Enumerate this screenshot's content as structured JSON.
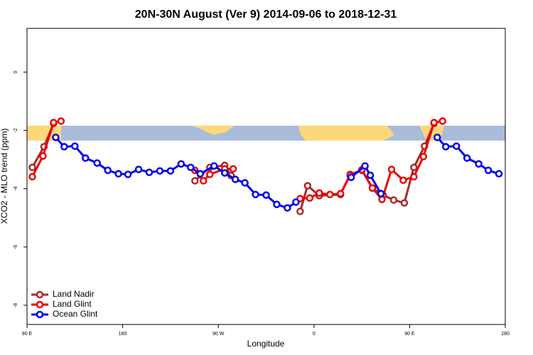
{
  "chart_data": {
    "type": "line",
    "title": "20N-30N August (Ver 9)   2014-09-06 to 2018-12-31",
    "x_label": "Longitude",
    "y_label": "XCO2 - MLO trend (ppm)",
    "xlim": [
      90,
      540
    ],
    "ylim": [
      -8.66,
      1.5
    ],
    "xticks": [
      {
        "value": 90,
        "label": "90 E"
      },
      180,
      {
        "value": 270,
        "label": "90 W"
      },
      {
        "value": 360,
        "label": "0"
      },
      {
        "value": 450,
        "label": "90 E"
      },
      {
        "value": 540,
        "label": "180"
      }
    ],
    "yticks": [
      0,
      -2,
      -4,
      -6,
      -8
    ],
    "legend": "bottom-left",
    "series": [
      {
        "name": "Land Nadir",
        "color": "#a52a2a",
        "x": [
          95,
          106,
          115,
          null,
          248,
          262,
          276,
          282,
          null,
          347,
          354,
          365,
          385,
          394,
          405,
          415,
          425,
          435,
          445,
          454,
          464,
          473
        ],
        "values": [
          -3.27,
          -2.56,
          -1.76,
          null,
          -3.73,
          -3.27,
          -3.2,
          -3.55,
          null,
          -4.78,
          -3.9,
          -4.24,
          -4.2,
          -3.51,
          -3.37,
          -3.98,
          -4.22,
          -4.39,
          -4.49,
          -3.27,
          -2.54,
          -1.76
        ]
      },
      {
        "name": "Land Glint",
        "color": "#ee0000",
        "x": [
          95,
          105,
          115,
          122,
          null,
          248,
          256,
          262,
          276,
          284,
          null,
          347,
          356,
          365,
          375,
          385,
          394,
          405,
          415,
          424,
          433,
          444,
          454,
          463,
          473,
          481
        ],
        "values": [
          -3.59,
          -2.88,
          -1.73,
          -1.68,
          null,
          -3.37,
          -3.73,
          -3.51,
          -3.32,
          -3.32,
          null,
          -4.34,
          -4.32,
          -4.15,
          -4.2,
          -4.17,
          -3.54,
          -3.35,
          -3.98,
          -4.37,
          -3.34,
          -3.71,
          -3.59,
          -2.9,
          -1.73,
          -1.68
        ]
      },
      {
        "name": "Ocean Glint",
        "color": "#0000ee",
        "x": [
          117,
          125,
          135,
          145,
          156,
          166,
          176,
          185,
          195,
          205,
          215,
          225,
          235,
          244,
          253,
          266,
          276,
          286,
          295,
          305,
          315,
          325,
          335,
          343,
          null,
          395,
          408,
          413,
          423,
          null,
          476,
          484,
          494,
          504,
          515,
          524,
          534
        ],
        "values": [
          -2.24,
          -2.56,
          -2.54,
          -2.95,
          -3.12,
          -3.37,
          -3.49,
          -3.51,
          -3.34,
          -3.44,
          -3.39,
          -3.39,
          -3.15,
          -3.27,
          -3.49,
          -3.22,
          -3.46,
          -3.68,
          -3.8,
          -4.2,
          -4.22,
          -4.54,
          -4.66,
          -4.46,
          null,
          -3.61,
          -3.22,
          -3.54,
          -4.17,
          null,
          -2.24,
          -2.56,
          -2.54,
          -2.95,
          -3.15,
          -3.37,
          -3.49
        ]
      }
    ]
  }
}
